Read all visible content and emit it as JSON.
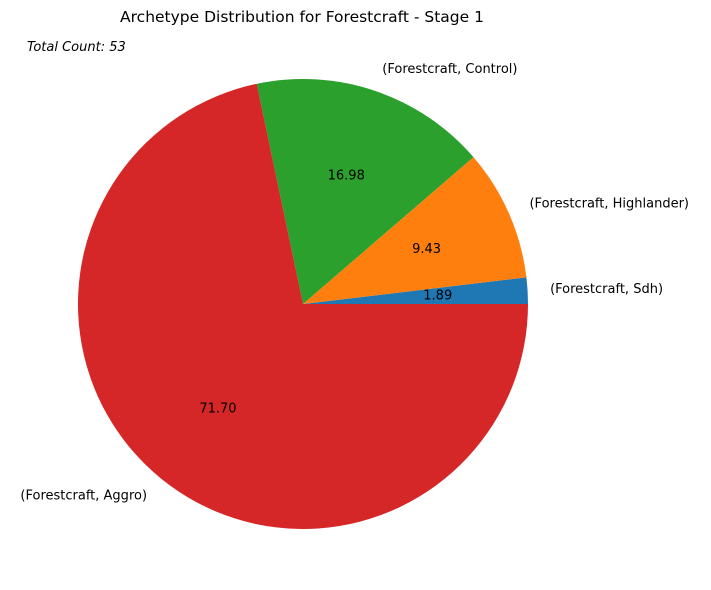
{
  "chart_data": {
    "type": "pie",
    "title": "Archetype Distribution for Forestcraft - Stage 1",
    "annotation": "Total Count: 53",
    "slices": [
      {
        "label": "(Forestcraft, Sdh)",
        "value": 1.89,
        "value_label": "1.89",
        "color": "#1f77b4"
      },
      {
        "label": "(Forestcraft, Highlander)",
        "value": 9.43,
        "value_label": "9.43",
        "color": "#ff7f0e"
      },
      {
        "label": "(Forestcraft, Control)",
        "value": 16.98,
        "value_label": "16.98",
        "color": "#2ca02c"
      },
      {
        "label": "(Forestcraft, Aggro)",
        "value": 71.7,
        "value_label": "71.70",
        "color": "#d62728"
      }
    ],
    "start_angle_deg": 0,
    "direction": "counterclockwise",
    "legend": "none"
  }
}
